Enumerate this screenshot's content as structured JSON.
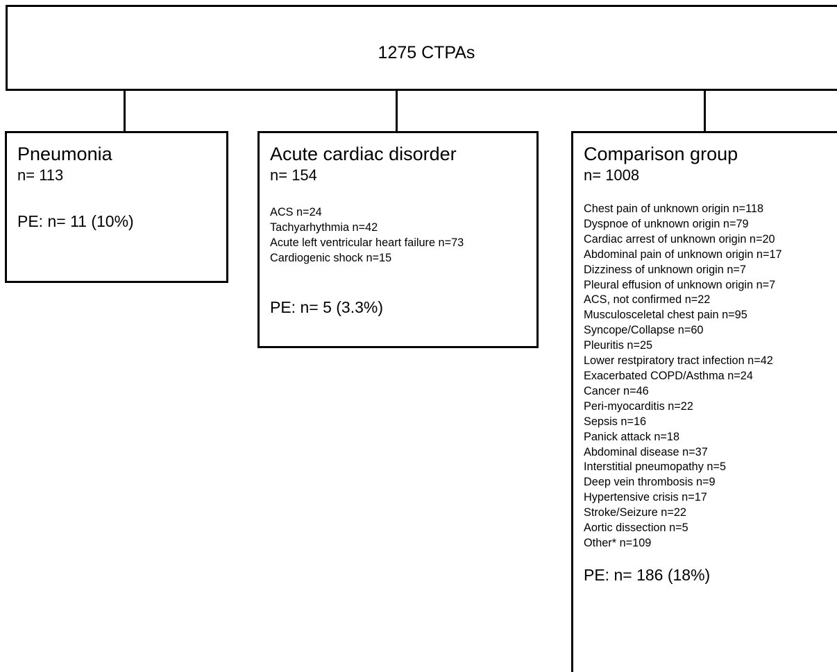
{
  "root": {
    "title": "1275 CTPAs"
  },
  "groups": [
    {
      "title": "Pneumonia",
      "n": "n= 113",
      "items": [],
      "pe": "PE: n= 11 (10%)"
    },
    {
      "title": "Acute cardiac disorder",
      "n": "n= 154",
      "items": [
        "ACS n=24",
        "Tachyarhythmia n=42",
        "Acute left ventricular heart failure n=73",
        "Cardiogenic shock n=15"
      ],
      "pe": "PE: n= 5 (3.3%)"
    },
    {
      "title": "Comparison group",
      "n": "n= 1008",
      "items": [
        "Chest pain of unknown origin n=118",
        "Dyspnoe of unknown origin n=79",
        "Cardiac arrest of unknown origin n=20",
        "Abdominal pain of unknown origin n=17",
        "Dizziness of unknown origin n=7",
        "Pleural effusion of unknown origin n=7",
        "ACS, not confirmed n=22",
        "Musculosceletal chest pain n=95",
        "Syncope/Collapse n=60",
        "Pleuritis n=25",
        "Lower restpiratory tract infection n=42",
        "Exacerbated COPD/Asthma n=24",
        "Cancer n=46",
        "Peri-myocarditis n=22",
        "Sepsis n=16",
        "Panick attack n=18",
        "Abdominal disease n=37",
        "Interstitial pneumopathy n=5",
        "Deep vein thrombosis n=9",
        "Hypertensive crisis n=17",
        "Stroke/Seizure n=22",
        "Aortic dissection n=5",
        "Other* n=109"
      ],
      "pe": "PE: n= 186 (18%)"
    }
  ]
}
